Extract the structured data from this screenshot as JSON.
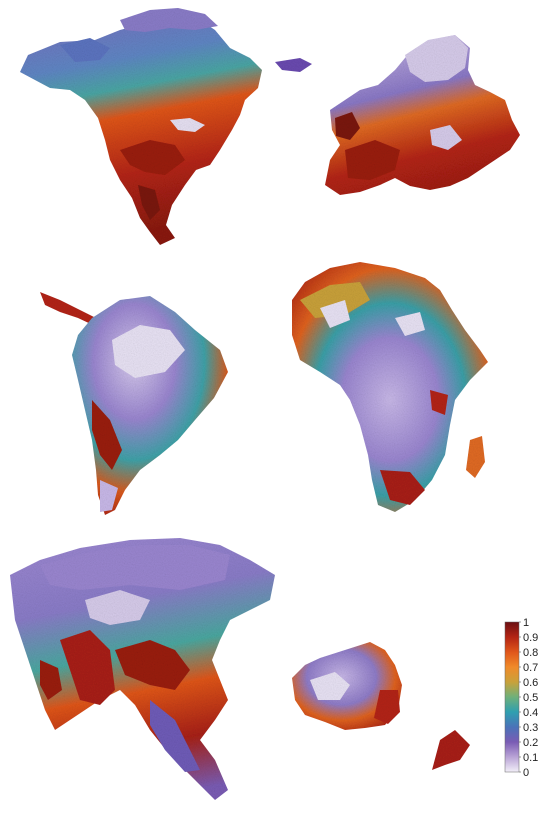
{
  "colorbar": {
    "ticks": [
      "1",
      "0.9",
      "0.8",
      "0.7",
      "0.6",
      "0.5",
      "0.4",
      "0.3",
      "0.2",
      "0.1",
      "0"
    ],
    "stops": [
      "#6b0f12",
      "#b32414",
      "#e0561a",
      "#f08a2a",
      "#c9a13a",
      "#6fb07a",
      "#2f9fb0",
      "#4a72b8",
      "#7a5cb4",
      "#b9a3d6",
      "#f2eef8"
    ]
  },
  "regions": [
    {
      "name": "north-america"
    },
    {
      "name": "europe"
    },
    {
      "name": "south-america"
    },
    {
      "name": "africa"
    },
    {
      "name": "asia"
    },
    {
      "name": "australia"
    }
  ]
}
